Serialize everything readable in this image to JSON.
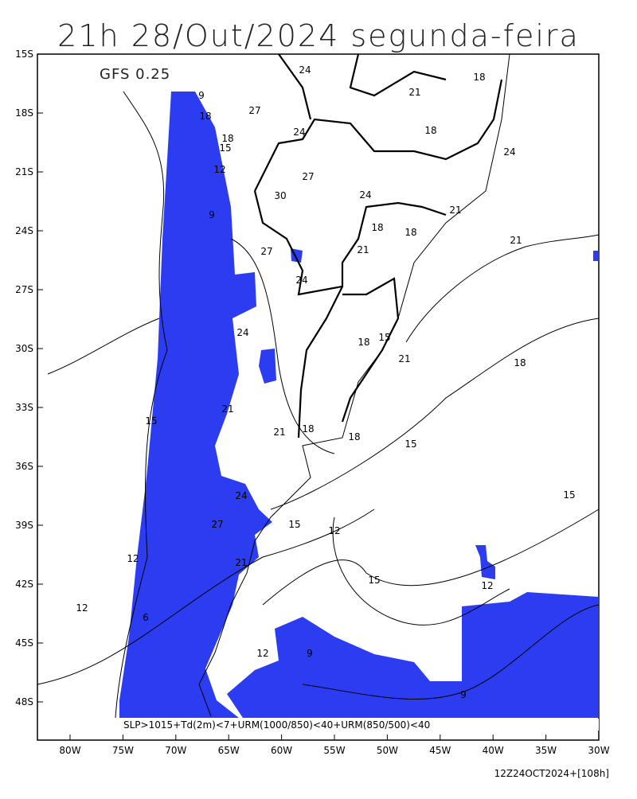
{
  "header": {
    "title": "21h 28/Out/2024 segunda-feira",
    "model": "GFS 0.25"
  },
  "lat_labels": [
    "15S",
    "18S",
    "21S",
    "24S",
    "27S",
    "30S",
    "33S",
    "36S",
    "39S",
    "42S",
    "45S",
    "48S"
  ],
  "lon_labels": [
    "80W",
    "75W",
    "70W",
    "65W",
    "60W",
    "55W",
    "50W",
    "45W",
    "40W",
    "35W",
    "30W"
  ],
  "contour_labels": [
    "24",
    "21",
    "18",
    "27",
    "24",
    "18",
    "24",
    "27",
    "30",
    "24",
    "21",
    "18",
    "21",
    "18",
    "21",
    "27",
    "24",
    "24",
    "18",
    "15",
    "21",
    "18",
    "21",
    "18",
    "18",
    "15",
    "15",
    "12",
    "15",
    "12",
    "12",
    "9",
    "9",
    "15",
    "21",
    "27",
    "24",
    "12",
    "21",
    "15",
    "18",
    "9",
    "12",
    "18",
    "15",
    "9",
    "6",
    "12"
  ],
  "footer": {
    "criteria": "SLP>1015+Td(2m)<7+URM(1000/850)<40+URM(850/500)<40",
    "run": "12Z24OCT2024+[108h]"
  }
}
